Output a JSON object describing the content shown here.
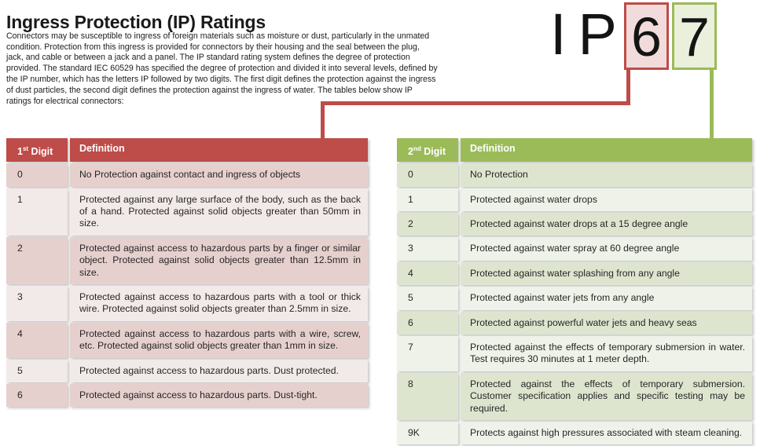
{
  "page": {
    "title": "Ingress Protection (IP) Ratings",
    "intro": "Connectors may be susceptible to ingress of foreign materials such as moisture or dust, particularly in the unmated condition. Protection from this ingress is provided for connectors by their housing and the seal between the plug, jack, and cable or between a jack and a panel. The IP standard rating system defines the degree of protection provided. The standard IEC 60529 has specified the degree of protection and divided it into several levels, defined by the IP number, which has the letters IP followed by two digits. The first digit defines the protection against the ingress of dust particles, the second digit defines the protection against the ingress of water. The tables below show IP ratings for electrical connectors:"
  },
  "ip_graphic": {
    "prefix": "IP",
    "first_digit": "6",
    "second_digit": "7"
  },
  "colors": {
    "red_accent": "#be4c48",
    "red_band_dark": "#e6d0ce",
    "red_band_light": "#f2eae8",
    "red_box_fill": "#f1dcdb",
    "green_accent": "#9bbb59",
    "green_band_dark": "#dee5cf",
    "green_band_light": "#eff2e9",
    "green_box_fill": "#eaf0dc"
  },
  "left_table": {
    "header": {
      "digit_num": "1",
      "digit_sup": "st",
      "digit_rest": " Digit",
      "definition": "Definition"
    },
    "rows": [
      {
        "digit": "0",
        "definition": "No Protection against contact and ingress of objects"
      },
      {
        "digit": "1",
        "definition": "Protected against any large surface of the body, such as the back of a hand. Protected against solid objects greater than 50mm in size."
      },
      {
        "digit": "2",
        "definition": "Protected against access to hazardous parts by a finger or similar object. Protected against solid objects greater than 12.5mm in size."
      },
      {
        "digit": "3",
        "definition": "Protected against access to hazardous parts with a tool or thick wire. Protected against solid objects greater than 2.5mm in size."
      },
      {
        "digit": "4",
        "definition": "Protected against access to hazardous parts with a wire, screw, etc. Protected against solid objects greater than 1mm in size."
      },
      {
        "digit": "5",
        "definition": "Protected against access to hazardous parts. Dust protected."
      },
      {
        "digit": "6",
        "definition": "Protected against access to hazardous parts. Dust-tight."
      }
    ]
  },
  "right_table": {
    "header": {
      "digit_num": "2",
      "digit_sup": "nd",
      "digit_rest": " Digit",
      "definition": "Definition"
    },
    "rows": [
      {
        "digit": "0",
        "definition": "No Protection"
      },
      {
        "digit": "1",
        "definition": "Protected against water drops"
      },
      {
        "digit": "2",
        "definition": "Protected against water drops at a 15 degree angle"
      },
      {
        "digit": "3",
        "definition": "Protected against water spray at 60 degree angle"
      },
      {
        "digit": "4",
        "definition": "Protected against water splashing from any angle"
      },
      {
        "digit": "5",
        "definition": "Protected against water jets from any angle"
      },
      {
        "digit": "6",
        "definition": "Protected against powerful water jets and heavy seas"
      },
      {
        "digit": "7",
        "definition": "Protected against the effects of temporary submersion in water. Test requires 30 minutes at 1 meter depth."
      },
      {
        "digit": "8",
        "definition": "Protected against the effects of temporary submersion. Customer specification applies and specific testing may be required."
      },
      {
        "digit": "9K",
        "definition": "Protects against high pressures associated with steam cleaning."
      }
    ]
  }
}
